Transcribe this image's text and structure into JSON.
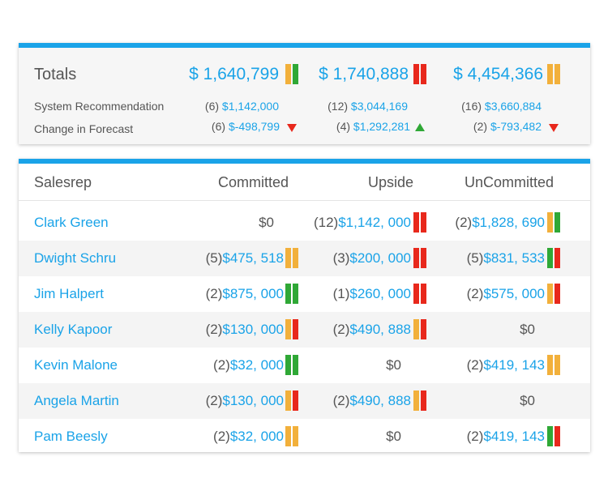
{
  "totals": {
    "label": "Totals",
    "columns": [
      {
        "total": "$ 1,640,799",
        "bars": [
          "orange",
          "green"
        ],
        "rec_count": "(6)",
        "rec_amount": "$1,142,000",
        "chg_count": "(6)",
        "chg_amount": "$-498,799",
        "chg_dir": "down"
      },
      {
        "total": "$ 1,740,888",
        "bars": [
          "red",
          "red"
        ],
        "rec_count": "(12)",
        "rec_amount": "$3,044,169",
        "chg_count": "(4)",
        "chg_amount": "$1,292,281",
        "chg_dir": "up"
      },
      {
        "total": "$ 4,454,366",
        "bars": [
          "orange",
          "orange"
        ],
        "rec_count": "(16)",
        "rec_amount": "$3,660,884",
        "chg_count": "(2)",
        "chg_amount": "$-793,482",
        "chg_dir": "down"
      }
    ],
    "system_recommendation_label": "System Recommendation",
    "change_in_forecast_label": "Change in Forecast"
  },
  "table": {
    "headers": {
      "salesrep": "Salesrep",
      "committed": "Committed",
      "upside": "Upside",
      "uncommitted": "UnCommitted"
    },
    "rows": [
      {
        "name": "Clark Green",
        "committed": {
          "count": "",
          "amount": "",
          "zero": "$0",
          "bars": []
        },
        "upside": {
          "count": "(12)",
          "amount": "$1,142, 000",
          "zero": "",
          "bars": [
            "red",
            "red"
          ]
        },
        "uncommitted": {
          "count": "(2)",
          "amount": "$1,828, 690",
          "zero": "",
          "bars": [
            "orange",
            "green"
          ]
        }
      },
      {
        "name": "Dwight Schru",
        "committed": {
          "count": "(5)",
          "amount": "$475, 518",
          "zero": "",
          "bars": [
            "orange",
            "orange"
          ]
        },
        "upside": {
          "count": "(3)",
          "amount": "$200, 000",
          "zero": "",
          "bars": [
            "red",
            "red"
          ]
        },
        "uncommitted": {
          "count": "(5)",
          "amount": "$831, 533",
          "zero": "",
          "bars": [
            "green",
            "red"
          ]
        }
      },
      {
        "name": "Jim Halpert",
        "committed": {
          "count": "(2)",
          "amount": "$875, 000",
          "zero": "",
          "bars": [
            "green",
            "green"
          ]
        },
        "upside": {
          "count": "(1)",
          "amount": "$260, 000",
          "zero": "",
          "bars": [
            "red",
            "red"
          ]
        },
        "uncommitted": {
          "count": "(2)",
          "amount": "$575, 000",
          "zero": "",
          "bars": [
            "orange",
            "red"
          ]
        }
      },
      {
        "name": "Kelly Kapoor",
        "committed": {
          "count": "(2)",
          "amount": "$130, 000",
          "zero": "",
          "bars": [
            "orange",
            "red"
          ]
        },
        "upside": {
          "count": "(2)",
          "amount": "$490, 888",
          "zero": "",
          "bars": [
            "orange",
            "red"
          ]
        },
        "uncommitted": {
          "count": "",
          "amount": "",
          "zero": "$0",
          "bars": []
        }
      },
      {
        "name": "Kevin Malone",
        "committed": {
          "count": "(2)",
          "amount": "$32, 000",
          "zero": "",
          "bars": [
            "green",
            "green"
          ]
        },
        "upside": {
          "count": "",
          "amount": "",
          "zero": "$0",
          "bars": []
        },
        "uncommitted": {
          "count": "(2)",
          "amount": "$419, 143",
          "zero": "",
          "bars": [
            "orange",
            "orange"
          ]
        }
      },
      {
        "name": "Angela Martin",
        "committed": {
          "count": "(2)",
          "amount": "$130, 000",
          "zero": "",
          "bars": [
            "orange",
            "red"
          ]
        },
        "upside": {
          "count": "(2)",
          "amount": "$490, 888",
          "zero": "",
          "bars": [
            "orange",
            "red"
          ]
        },
        "uncommitted": {
          "count": "",
          "amount": "",
          "zero": "$0",
          "bars": []
        }
      },
      {
        "name": "Pam Beesly",
        "committed": {
          "count": "(2)",
          "amount": "$32, 000",
          "zero": "",
          "bars": [
            "orange",
            "orange"
          ]
        },
        "upside": {
          "count": "",
          "amount": "",
          "zero": "$0",
          "bars": []
        },
        "uncommitted": {
          "count": "(2)",
          "amount": "$419, 143",
          "zero": "",
          "bars": [
            "green",
            "red"
          ]
        }
      }
    ]
  },
  "colors": {
    "accent": "#1aa3e8",
    "green": "#2fa836",
    "orange": "#f2b03b",
    "red": "#e8281c"
  }
}
